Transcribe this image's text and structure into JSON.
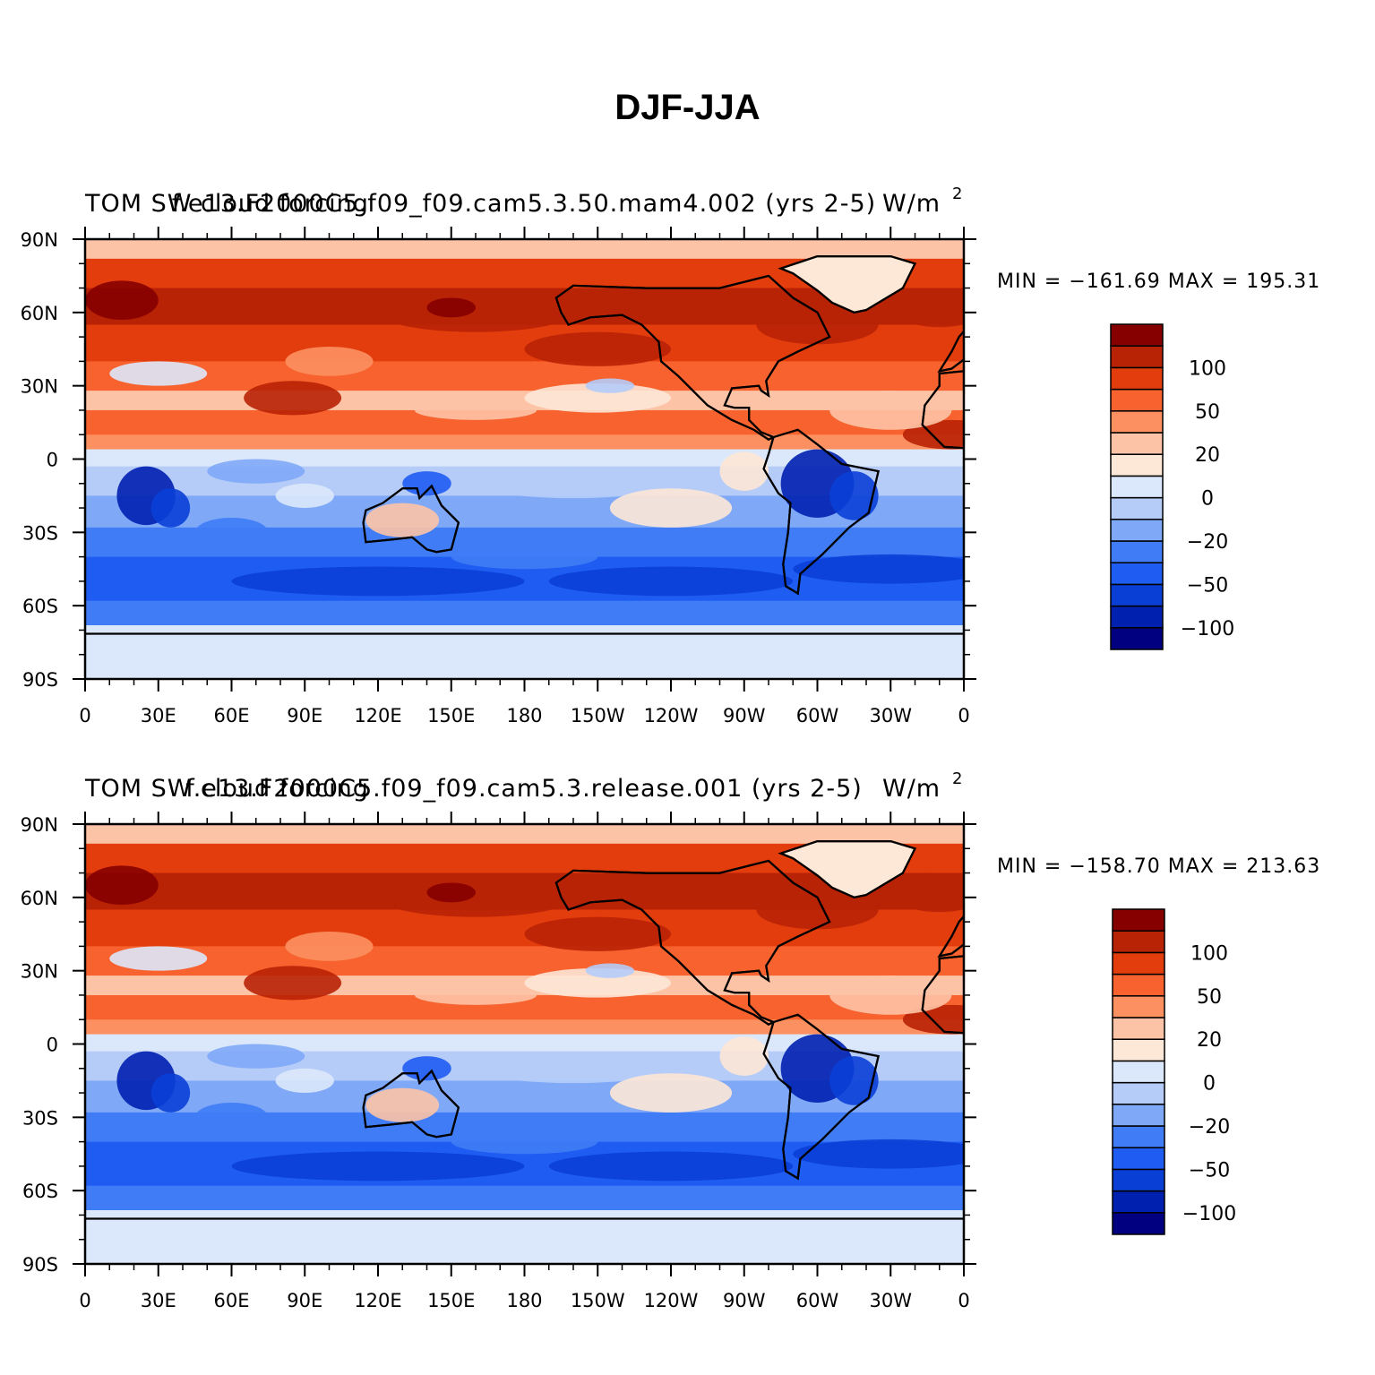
{
  "title": "DJF-JJA",
  "colors": [
    "#000080",
    "#0020b0",
    "#0a3fd6",
    "#1e5cf2",
    "#3f7cf5",
    "#7fa8f7",
    "#b5ccf8",
    "#dbe8fb",
    "#fde7d6",
    "#fdc3a6",
    "#fc9060",
    "#f7622e",
    "#e43d0d",
    "#b82205",
    "#860000"
  ],
  "colorbar_labels": [
    "100",
    "50",
    "20",
    "0",
    "−20",
    "−50",
    "−100"
  ],
  "x_ticks": [
    "0",
    "30E",
    "60E",
    "90E",
    "120E",
    "150E",
    "180",
    "150W",
    "120W",
    "90W",
    "60W",
    "30W",
    "0"
  ],
  "y_ticks": [
    "90N",
    "60N",
    "30N",
    "0",
    "30S",
    "60S",
    "90S"
  ],
  "panels": [
    {
      "left_title": "TOM SW cloud forcing",
      "center_title": "f.e13.F2000C5.f09_f09.cam5.3.50.mam4.002 (yrs 2-5)",
      "units": "W/m",
      "units_exp": "2",
      "minmax": "MIN = −161.69  MAX = 195.31"
    },
    {
      "left_title": "TOM SW cloud forcing",
      "center_title": "f.e13.F2000C5.f09_f09.cam5.3.release.001 (yrs 2-5)",
      "units": "W/m",
      "units_exp": "2",
      "minmax": "MIN = −158.70  MAX = 213.63"
    }
  ]
}
